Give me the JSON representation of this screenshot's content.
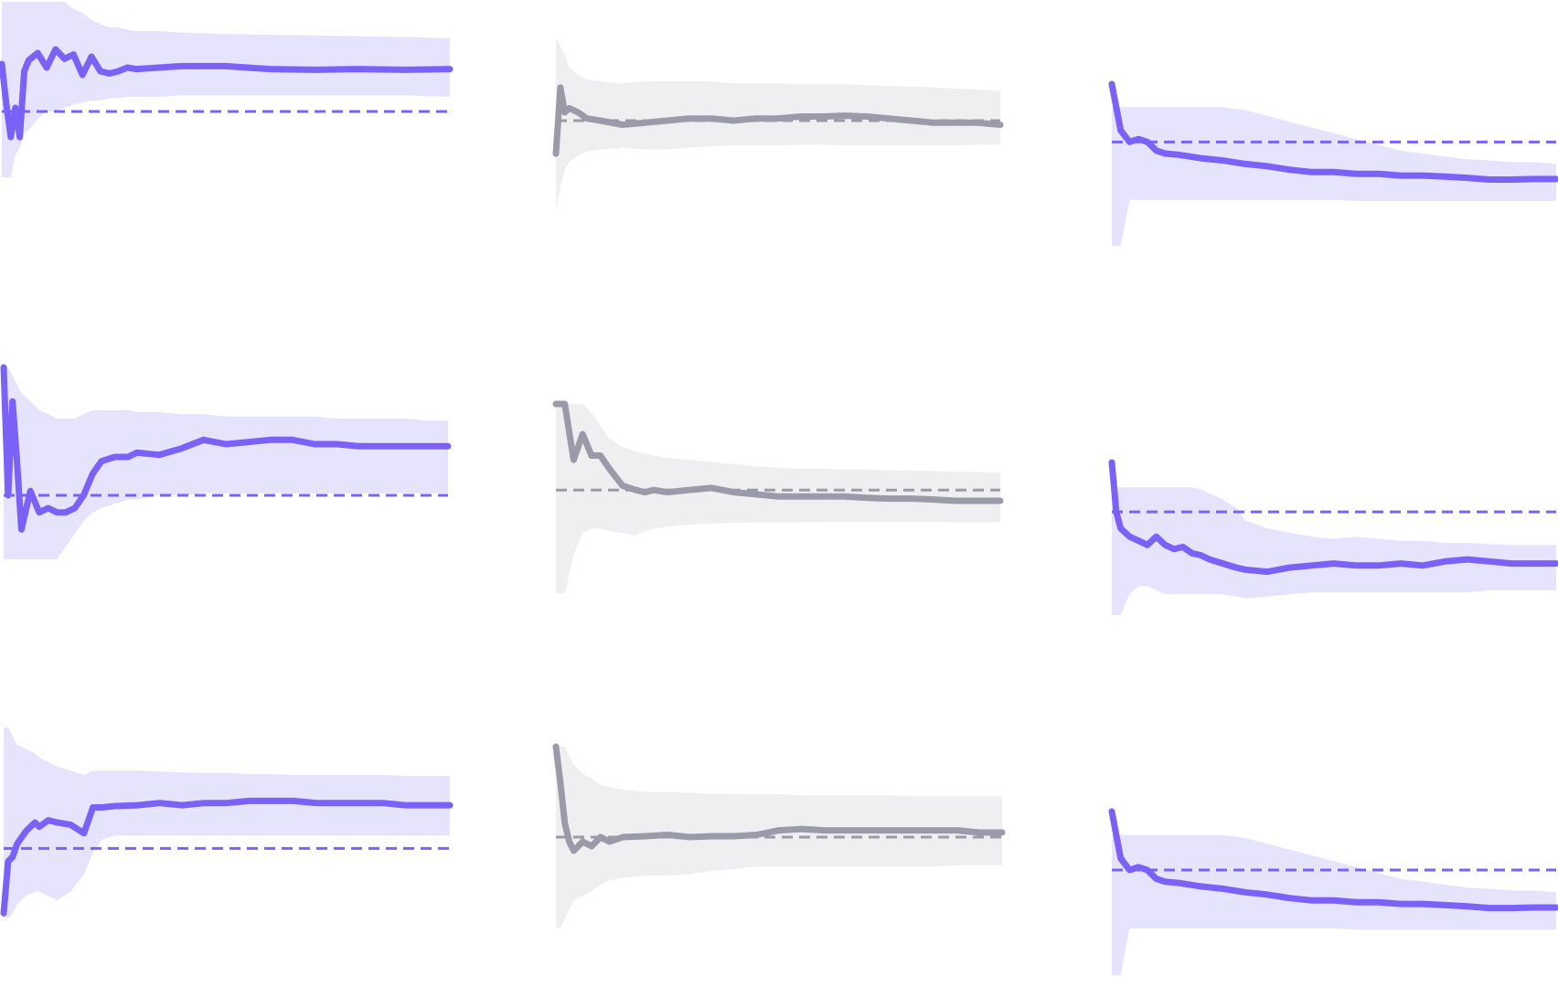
{
  "chart_data": [
    {
      "type": "line",
      "title": "",
      "xlabel": "",
      "ylabel": "",
      "grid": false,
      "color": "#7b61f5",
      "band_color": "#e6e3fc",
      "x": [
        0,
        0.01,
        0.02,
        0.03,
        0.04,
        0.05,
        0.06,
        0.08,
        0.1,
        0.12,
        0.14,
        0.16,
        0.18,
        0.2,
        0.22,
        0.24,
        0.26,
        0.28,
        0.3,
        0.35,
        0.4,
        0.5,
        0.6,
        0.7,
        0.8,
        0.9,
        1.0
      ],
      "series": [
        {
          "values": [
            0.65,
            0.1,
            -0.35,
            0.05,
            -0.35,
            0.55,
            0.7,
            0.8,
            0.6,
            0.85,
            0.72,
            0.78,
            0.5,
            0.75,
            0.55,
            0.52,
            0.55,
            0.6,
            0.58,
            0.6,
            0.62,
            0.62,
            0.58,
            0.57,
            0.58,
            0.57,
            0.58
          ]
        }
      ],
      "band_upper": [
        3.0,
        2.8,
        2.6,
        2.4,
        2.2,
        2.0,
        1.9,
        1.8,
        1.7,
        1.6,
        1.5,
        1.4,
        1.35,
        1.25,
        1.2,
        1.15,
        1.15,
        1.12,
        1.1,
        1.1,
        1.08,
        1.06,
        1.05,
        1.04,
        1.03,
        1.02,
        1.0
      ],
      "band_lower": [
        -0.9,
        -0.9,
        -0.9,
        -0.6,
        -0.5,
        -0.3,
        -0.25,
        -0.1,
        0.0,
        0.0,
        0.05,
        0.1,
        0.12,
        0.15,
        0.15,
        0.18,
        0.18,
        0.2,
        0.2,
        0.2,
        0.22,
        0.22,
        0.22,
        0.22,
        0.22,
        0.22,
        0.2
      ],
      "reference_line": 0.0,
      "ylim": [
        -1,
        1.5
      ]
    },
    {
      "type": "line",
      "title": "",
      "xlabel": "",
      "ylabel": "",
      "grid": false,
      "color": "#9a9aa8",
      "band_color": "#efeff2",
      "x": [
        0,
        0.01,
        0.02,
        0.03,
        0.05,
        0.07,
        0.1,
        0.15,
        0.2,
        0.25,
        0.3,
        0.35,
        0.4,
        0.45,
        0.5,
        0.55,
        0.6,
        0.65,
        0.7,
        0.75,
        0.8,
        0.85,
        0.9,
        0.95,
        1.0
      ],
      "series": [
        {
          "values": [
            -0.8,
            0.8,
            0.2,
            0.3,
            0.2,
            0.05,
            0.0,
            -0.1,
            -0.05,
            0.0,
            0.05,
            0.05,
            0.0,
            0.05,
            0.05,
            0.1,
            0.1,
            0.12,
            0.1,
            0.05,
            0.0,
            -0.05,
            -0.05,
            -0.05,
            -0.1
          ]
        }
      ],
      "band_upper": [
        2.0,
        1.8,
        1.6,
        1.3,
        1.1,
        1.0,
        0.95,
        0.9,
        0.95,
        0.95,
        0.95,
        0.95,
        0.9,
        0.9,
        0.9,
        0.88,
        0.88,
        0.88,
        0.86,
        0.84,
        0.82,
        0.8,
        0.78,
        0.75,
        0.72
      ],
      "band_lower": [
        -2.2,
        -1.6,
        -1.2,
        -1.0,
        -0.85,
        -0.75,
        -0.7,
        -0.65,
        -0.7,
        -0.7,
        -0.65,
        -0.62,
        -0.6,
        -0.6,
        -0.6,
        -0.58,
        -0.58,
        -0.6,
        -0.6,
        -0.6,
        -0.6,
        -0.6,
        -0.6,
        -0.58,
        -0.58
      ],
      "reference_line": 0.0,
      "ylim": [
        -2.3,
        2.3
      ]
    },
    {
      "type": "line",
      "title": "",
      "xlabel": "",
      "ylabel": "",
      "grid": false,
      "color": "#7b61f5",
      "band_color": "#e6e3fc",
      "x": [
        0,
        0.02,
        0.04,
        0.06,
        0.08,
        0.1,
        0.12,
        0.15,
        0.2,
        0.25,
        0.3,
        0.35,
        0.4,
        0.45,
        0.5,
        0.55,
        0.6,
        0.65,
        0.7,
        0.75,
        0.8,
        0.85,
        0.9,
        0.95,
        1.0
      ],
      "series": [
        {
          "values": [
            1.0,
            0.2,
            0.0,
            0.05,
            0.0,
            -0.15,
            -0.2,
            -0.22,
            -0.28,
            -0.32,
            -0.38,
            -0.42,
            -0.48,
            -0.52,
            -0.52,
            -0.55,
            -0.55,
            -0.58,
            -0.58,
            -0.6,
            -0.62,
            -0.65,
            -0.65,
            -0.64,
            -0.64
          ]
        }
      ],
      "band_upper": [
        0.6,
        0.6,
        0.6,
        0.6,
        0.6,
        0.6,
        0.6,
        0.6,
        0.6,
        0.6,
        0.55,
        0.45,
        0.35,
        0.25,
        0.15,
        0.05,
        -0.05,
        -0.15,
        -0.2,
        -0.25,
        -0.3,
        -0.32,
        -0.35,
        -0.35,
        -0.38
      ],
      "band_lower": [
        -1.8,
        -1.8,
        -1.0,
        -1.0,
        -1.0,
        -1.0,
        -1.0,
        -1.0,
        -1.0,
        -1.0,
        -1.0,
        -1.0,
        -1.0,
        -1.0,
        -1.0,
        -1.02,
        -1.02,
        -1.02,
        -1.02,
        -1.02,
        -1.02,
        -1.02,
        -1.02,
        -1.02,
        -1.02
      ],
      "reference_line": 0.0,
      "ylim": [
        -2,
        1
      ]
    },
    {
      "type": "line",
      "title": "",
      "xlabel": "",
      "ylabel": "",
      "grid": false,
      "color": "#7b61f5",
      "band_color": "#e6e3fc",
      "x": [
        0,
        0.01,
        0.02,
        0.03,
        0.04,
        0.06,
        0.08,
        0.1,
        0.12,
        0.14,
        0.16,
        0.18,
        0.2,
        0.22,
        0.25,
        0.28,
        0.3,
        0.35,
        0.4,
        0.45,
        0.5,
        0.55,
        0.6,
        0.65,
        0.7,
        0.75,
        0.8,
        0.85,
        0.9,
        0.95,
        1.0
      ],
      "series": [
        {
          "values": [
            3.0,
            0.0,
            2.2,
            0.8,
            -0.8,
            0.1,
            -0.4,
            -0.3,
            -0.4,
            -0.4,
            -0.3,
            0.0,
            0.5,
            0.8,
            0.9,
            0.9,
            1.0,
            0.95,
            1.1,
            1.3,
            1.2,
            1.25,
            1.3,
            1.3,
            1.2,
            1.2,
            1.15,
            1.15,
            1.15,
            1.15,
            1.15
          ]
        }
      ],
      "band_upper": [
        3.0,
        3.0,
        2.8,
        2.6,
        2.4,
        2.2,
        2.0,
        1.9,
        1.8,
        1.8,
        1.8,
        1.9,
        2.0,
        2.0,
        2.0,
        2.0,
        1.95,
        1.95,
        1.9,
        1.9,
        1.85,
        1.85,
        1.85,
        1.85,
        1.85,
        1.8,
        1.8,
        1.8,
        1.8,
        1.75,
        1.75
      ],
      "band_lower": [
        -1.5,
        -1.5,
        -1.5,
        -1.5,
        -1.5,
        -1.5,
        -1.5,
        -1.5,
        -1.5,
        -1.2,
        -0.9,
        -0.6,
        -0.4,
        -0.3,
        -0.2,
        -0.1,
        -0.1,
        0.0,
        0.0,
        0.05,
        0.05,
        0.05,
        0.05,
        0.05,
        0.05,
        0.05,
        0.05,
        0.05,
        0.05,
        0.05,
        0.05
      ],
      "reference_line": 0.0,
      "ylim": [
        -1.5,
        3.0
      ]
    },
    {
      "type": "line",
      "title": "",
      "xlabel": "",
      "ylabel": "",
      "grid": false,
      "color": "#9a9aa8",
      "band_color": "#efeff2",
      "x": [
        0,
        0.02,
        0.04,
        0.06,
        0.08,
        0.1,
        0.12,
        0.15,
        0.18,
        0.2,
        0.22,
        0.25,
        0.3,
        0.35,
        0.4,
        0.45,
        0.5,
        0.55,
        0.6,
        0.65,
        0.7,
        0.75,
        0.8,
        0.85,
        0.9,
        0.95,
        1.0
      ],
      "series": [
        {
          "values": [
            2.0,
            2.0,
            0.7,
            1.3,
            0.8,
            0.8,
            0.5,
            0.1,
            0.0,
            -0.05,
            0.0,
            -0.05,
            0.0,
            0.05,
            -0.05,
            -0.1,
            -0.15,
            -0.15,
            -0.15,
            -0.15,
            -0.18,
            -0.2,
            -0.2,
            -0.22,
            -0.25,
            -0.25,
            -0.25
          ]
        }
      ],
      "band_upper": [
        2.0,
        2.0,
        2.0,
        2.0,
        1.8,
        1.5,
        1.2,
        1.0,
        0.9,
        0.85,
        0.8,
        0.75,
        0.7,
        0.65,
        0.6,
        0.55,
        0.52,
        0.5,
        0.5,
        0.48,
        0.48,
        0.46,
        0.45,
        0.44,
        0.43,
        0.42,
        0.4
      ],
      "band_lower": [
        -2.4,
        -2.4,
        -1.5,
        -1.0,
        -0.9,
        -0.9,
        -0.95,
        -1.0,
        -1.05,
        -0.95,
        -0.9,
        -0.85,
        -0.8,
        -0.78,
        -0.76,
        -0.75,
        -0.75,
        -0.75,
        -0.74,
        -0.74,
        -0.74,
        -0.74,
        -0.74,
        -0.74,
        -0.75,
        -0.75,
        -0.75
      ],
      "reference_line": 0.0,
      "ylim": [
        -2.5,
        2.0
      ]
    },
    {
      "type": "line",
      "title": "",
      "xlabel": "",
      "ylabel": "",
      "grid": false,
      "color": "#7b61f5",
      "band_color": "#e6e3fc",
      "x": [
        0,
        0.01,
        0.02,
        0.04,
        0.06,
        0.08,
        0.1,
        0.12,
        0.14,
        0.16,
        0.18,
        0.2,
        0.22,
        0.25,
        0.28,
        0.3,
        0.35,
        0.4,
        0.45,
        0.5,
        0.55,
        0.6,
        0.65,
        0.7,
        0.75,
        0.8,
        0.85,
        0.9,
        0.95,
        1.0
      ],
      "series": [
        {
          "values": [
            1.2,
            0.0,
            -0.4,
            -0.6,
            -0.7,
            -0.8,
            -0.6,
            -0.8,
            -0.9,
            -0.85,
            -1.0,
            -1.05,
            -1.15,
            -1.25,
            -1.35,
            -1.4,
            -1.45,
            -1.35,
            -1.3,
            -1.25,
            -1.3,
            -1.3,
            -1.25,
            -1.3,
            -1.2,
            -1.15,
            -1.2,
            -1.25,
            -1.25,
            -1.25
          ]
        }
      ],
      "band_upper": [
        0.6,
        0.6,
        0.6,
        0.6,
        0.6,
        0.6,
        0.6,
        0.6,
        0.6,
        0.6,
        0.6,
        0.55,
        0.45,
        0.3,
        0.1,
        -0.2,
        -0.4,
        -0.5,
        -0.6,
        -0.65,
        -0.6,
        -0.65,
        -0.7,
        -0.7,
        -0.75,
        -0.75,
        -0.78,
        -0.8,
        -0.8,
        -0.8
      ],
      "band_lower": [
        -2.5,
        -2.5,
        -2.5,
        -2.0,
        -1.8,
        -1.8,
        -1.9,
        -2.0,
        -2.0,
        -2.0,
        -2.0,
        -2.0,
        -2.0,
        -2.0,
        -2.05,
        -2.1,
        -2.05,
        -2.0,
        -1.95,
        -1.95,
        -1.95,
        -1.95,
        -1.95,
        -1.95,
        -1.95,
        -1.95,
        -1.9,
        -1.9,
        -1.9,
        -1.9
      ],
      "reference_line": 0.0,
      "ylim": [
        -2.7,
        1.2
      ]
    },
    {
      "type": "line",
      "title": "",
      "xlabel": "",
      "ylabel": "",
      "grid": false,
      "color": "#7b61f5",
      "band_color": "#e6e3fc",
      "x": [
        0,
        0.01,
        0.02,
        0.03,
        0.05,
        0.07,
        0.08,
        0.1,
        0.12,
        0.15,
        0.18,
        0.2,
        0.22,
        0.25,
        0.3,
        0.35,
        0.4,
        0.45,
        0.5,
        0.55,
        0.6,
        0.65,
        0.7,
        0.75,
        0.8,
        0.85,
        0.9,
        0.95,
        1.0
      ],
      "series": [
        {
          "values": [
            -1.5,
            -0.3,
            -0.2,
            0.1,
            0.4,
            0.6,
            0.5,
            0.65,
            0.6,
            0.55,
            0.35,
            0.95,
            0.95,
            0.98,
            1.0,
            1.05,
            1.0,
            1.05,
            1.05,
            1.1,
            1.1,
            1.1,
            1.05,
            1.05,
            1.05,
            1.05,
            1.0,
            1.0,
            1.0
          ]
        }
      ],
      "band_upper": [
        2.8,
        2.8,
        2.6,
        2.4,
        2.3,
        2.2,
        2.1,
        2.0,
        1.9,
        1.8,
        1.7,
        1.8,
        1.8,
        1.8,
        1.8,
        1.78,
        1.76,
        1.75,
        1.75,
        1.72,
        1.72,
        1.7,
        1.7,
        1.7,
        1.7,
        1.7,
        1.68,
        1.68,
        1.68
      ],
      "band_lower": [
        -1.6,
        -1.6,
        -1.5,
        -1.3,
        -1.1,
        -1.0,
        -1.0,
        -1.1,
        -1.2,
        -1.0,
        -0.6,
        -0.1,
        0.2,
        0.3,
        0.3,
        0.3,
        0.3,
        0.3,
        0.3,
        0.3,
        0.3,
        0.3,
        0.3,
        0.3,
        0.3,
        0.3,
        0.3,
        0.3,
        0.3
      ],
      "reference_line": 0.0,
      "ylim": [
        -1.6,
        2.8
      ]
    },
    {
      "type": "line",
      "title": "",
      "xlabel": "",
      "ylabel": "",
      "grid": false,
      "color": "#9a9aa8",
      "band_color": "#efeff2",
      "x": [
        0,
        0.01,
        0.02,
        0.03,
        0.04,
        0.06,
        0.08,
        0.1,
        0.12,
        0.15,
        0.2,
        0.25,
        0.3,
        0.35,
        0.4,
        0.45,
        0.5,
        0.55,
        0.6,
        0.65,
        0.7,
        0.75,
        0.8,
        0.85,
        0.9,
        0.95,
        1.0
      ],
      "series": [
        {
          "values": [
            2.0,
            1.2,
            0.3,
            -0.1,
            -0.3,
            -0.1,
            -0.2,
            0.0,
            -0.1,
            0.0,
            0.02,
            0.05,
            0.0,
            0.02,
            0.02,
            0.05,
            0.15,
            0.18,
            0.15,
            0.15,
            0.15,
            0.15,
            0.15,
            0.15,
            0.15,
            0.1,
            0.1
          ]
        }
      ],
      "band_upper": [
        2.0,
        2.0,
        2.0,
        1.8,
        1.6,
        1.4,
        1.3,
        1.15,
        1.1,
        1.05,
        1.0,
        1.0,
        0.98,
        0.96,
        0.95,
        0.95,
        0.95,
        0.92,
        0.92,
        0.92,
        0.92,
        0.92,
        0.9,
        0.9,
        0.9,
        0.9,
        0.9
      ],
      "band_lower": [
        -2.0,
        -2.0,
        -1.8,
        -1.6,
        -1.4,
        -1.3,
        -1.2,
        -1.05,
        -0.95,
        -0.9,
        -0.85,
        -0.85,
        -0.82,
        -0.75,
        -0.7,
        -0.65,
        -0.65,
        -0.65,
        -0.65,
        -0.65,
        -0.65,
        -0.65,
        -0.65,
        -0.65,
        -0.62,
        -0.62,
        -0.62
      ],
      "reference_line": 0.0,
      "ylim": [
        -2.1,
        2.1
      ]
    },
    {
      "type": "line",
      "title": "",
      "xlabel": "",
      "ylabel": "",
      "grid": false,
      "color": "#7b61f5",
      "band_color": "#e6e3fc",
      "x": [
        0,
        0.02,
        0.04,
        0.06,
        0.08,
        0.1,
        0.12,
        0.15,
        0.2,
        0.25,
        0.3,
        0.35,
        0.4,
        0.45,
        0.5,
        0.55,
        0.6,
        0.65,
        0.7,
        0.75,
        0.8,
        0.85,
        0.9,
        0.95,
        1.0
      ],
      "series": [
        {
          "values": [
            1.0,
            0.2,
            0.0,
            0.05,
            0.0,
            -0.15,
            -0.2,
            -0.22,
            -0.28,
            -0.32,
            -0.38,
            -0.42,
            -0.48,
            -0.52,
            -0.52,
            -0.55,
            -0.55,
            -0.58,
            -0.58,
            -0.6,
            -0.62,
            -0.65,
            -0.65,
            -0.64,
            -0.64
          ]
        }
      ],
      "band_upper": [
        0.6,
        0.6,
        0.6,
        0.6,
        0.6,
        0.6,
        0.6,
        0.6,
        0.6,
        0.6,
        0.55,
        0.45,
        0.35,
        0.25,
        0.15,
        0.05,
        -0.05,
        -0.15,
        -0.2,
        -0.25,
        -0.3,
        -0.32,
        -0.35,
        -0.35,
        -0.38
      ],
      "band_lower": [
        -1.8,
        -1.8,
        -1.0,
        -1.0,
        -1.0,
        -1.0,
        -1.0,
        -1.0,
        -1.0,
        -1.0,
        -1.0,
        -1.0,
        -1.0,
        -1.0,
        -1.0,
        -1.02,
        -1.02,
        -1.02,
        -1.02,
        -1.02,
        -1.02,
        -1.02,
        -1.02,
        -1.02,
        -1.02
      ],
      "reference_line": 0.0,
      "ylim": [
        -2,
        1
      ]
    }
  ]
}
